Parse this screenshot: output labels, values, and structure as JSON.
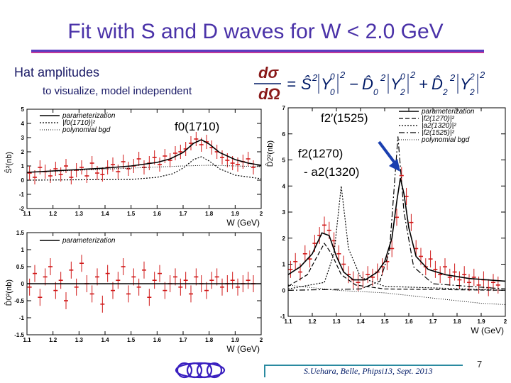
{
  "slide": {
    "title": "Fit  with S and D waves for W < 2.0 GeV",
    "hat_heading": "Hat amplitudes",
    "hat_sub": "to visualize,  model independent",
    "formula": {
      "dsigma": "dσ",
      "domega": "dΩ",
      "eq": "=",
      "S": "Ŝ",
      "Y": "Y",
      "D0": "D̂",
      "D2": "D̂",
      "minus": "−",
      "plus": "+",
      "sup2": "2",
      "sup0": "0",
      "sub0": "0",
      "sub2": "2"
    },
    "annotations": {
      "f0": "f0(1710)",
      "f2p": "f2′(1525)",
      "f2": "f2(1270)",
      "a2": "- a2(1320)"
    },
    "footer": "S.Uehara, Belle, Phipsi13, Sept. 2013",
    "page_number": "7"
  },
  "chart_data": [
    {
      "type": "scatter",
      "name": "S-hat squared",
      "ylabel": "Ŝ²(nb)",
      "xlabel": "W (GeV)",
      "xlim": [
        1.1,
        2.0
      ],
      "ylim": [
        -2,
        5
      ],
      "xticks": [
        "1.1",
        "1.2",
        "1.3",
        "1.4",
        "1.5",
        "1.6",
        "1.7",
        "1.8",
        "1.9",
        "2"
      ],
      "yticks": [
        "-2",
        "-1",
        "0",
        "1",
        "2",
        "3",
        "4",
        "5"
      ],
      "legend": [
        "parameterization",
        "|f0(1710)|²",
        "polynomial bgd"
      ],
      "legend_position": "top-left",
      "points": [
        [
          1.11,
          0.5
        ],
        [
          1.13,
          0.2
        ],
        [
          1.15,
          0.9
        ],
        [
          1.17,
          0.6
        ],
        [
          1.19,
          0.3
        ],
        [
          1.21,
          0.8
        ],
        [
          1.23,
          0.4
        ],
        [
          1.25,
          1.0
        ],
        [
          1.27,
          0.2
        ],
        [
          1.29,
          0.7
        ],
        [
          1.31,
          0.9
        ],
        [
          1.33,
          0.3
        ],
        [
          1.35,
          1.2
        ],
        [
          1.37,
          0.5
        ],
        [
          1.39,
          0.4
        ],
        [
          1.41,
          0.9
        ],
        [
          1.43,
          1.1
        ],
        [
          1.45,
          0.6
        ],
        [
          1.47,
          1.3
        ],
        [
          1.49,
          0.8
        ],
        [
          1.51,
          1.0
        ],
        [
          1.53,
          1.5
        ],
        [
          1.55,
          0.9
        ],
        [
          1.57,
          1.2
        ],
        [
          1.59,
          1.6
        ],
        [
          1.61,
          1.1
        ],
        [
          1.63,
          1.7
        ],
        [
          1.65,
          1.4
        ],
        [
          1.67,
          1.9
        ],
        [
          1.69,
          2.0
        ],
        [
          1.71,
          2.2
        ],
        [
          1.73,
          2.6
        ],
        [
          1.75,
          2.9
        ],
        [
          1.77,
          2.5
        ],
        [
          1.79,
          2.7
        ],
        [
          1.81,
          2.3
        ],
        [
          1.83,
          2.0
        ],
        [
          1.85,
          1.6
        ],
        [
          1.87,
          1.4
        ],
        [
          1.89,
          1.2
        ],
        [
          1.91,
          1.1
        ],
        [
          1.93,
          1.3
        ],
        [
          1.95,
          1.5
        ],
        [
          1.97,
          0.9
        ]
      ],
      "parameterization": [
        [
          1.1,
          0.55
        ],
        [
          1.2,
          0.65
        ],
        [
          1.3,
          0.75
        ],
        [
          1.4,
          0.85
        ],
        [
          1.5,
          1.0
        ],
        [
          1.6,
          1.25
        ],
        [
          1.65,
          1.5
        ],
        [
          1.7,
          1.95
        ],
        [
          1.74,
          2.6
        ],
        [
          1.77,
          2.85
        ],
        [
          1.8,
          2.55
        ],
        [
          1.84,
          1.95
        ],
        [
          1.9,
          1.45
        ],
        [
          1.95,
          1.2
        ],
        [
          2.0,
          1.05
        ]
      ],
      "f0_1710": [
        [
          1.1,
          0.0
        ],
        [
          1.5,
          0.05
        ],
        [
          1.6,
          0.2
        ],
        [
          1.66,
          0.45
        ],
        [
          1.7,
          0.85
        ],
        [
          1.74,
          1.45
        ],
        [
          1.77,
          1.65
        ],
        [
          1.8,
          1.35
        ],
        [
          1.84,
          0.8
        ],
        [
          1.9,
          0.35
        ],
        [
          2.0,
          0.1
        ]
      ],
      "bgd": [
        [
          1.1,
          0.55
        ],
        [
          1.3,
          0.7
        ],
        [
          1.5,
          0.85
        ],
        [
          1.7,
          1.0
        ],
        [
          1.8,
          1.05
        ],
        [
          1.9,
          1.0
        ],
        [
          2.0,
          0.95
        ]
      ]
    },
    {
      "type": "scatter",
      "name": "D0-hat squared",
      "ylabel": "D̂0²(nb)",
      "xlabel": "W (GeV)",
      "xlim": [
        1.1,
        2.0
      ],
      "ylim": [
        -1.5,
        1.5
      ],
      "xticks": [
        "1.1",
        "1.2",
        "1.3",
        "1.4",
        "1.5",
        "1.6",
        "1.7",
        "1.8",
        "1.9",
        "2"
      ],
      "yticks": [
        "-1.5",
        "-1",
        "-0.5",
        "0",
        "0.5",
        "1",
        "1.5"
      ],
      "legend": [
        "parameterization"
      ],
      "legend_position": "top-left",
      "points": [
        [
          1.11,
          -0.1
        ],
        [
          1.13,
          0.3
        ],
        [
          1.15,
          -0.4
        ],
        [
          1.17,
          0.2
        ],
        [
          1.19,
          0.5
        ],
        [
          1.21,
          -0.2
        ],
        [
          1.23,
          0.1
        ],
        [
          1.25,
          -0.5
        ],
        [
          1.27,
          0.4
        ],
        [
          1.29,
          -0.1
        ],
        [
          1.31,
          0.6
        ],
        [
          1.33,
          0.0
        ],
        [
          1.35,
          -0.3
        ],
        [
          1.37,
          0.2
        ],
        [
          1.39,
          -0.6
        ],
        [
          1.41,
          0.3
        ],
        [
          1.43,
          -0.2
        ],
        [
          1.45,
          0.1
        ],
        [
          1.47,
          0.5
        ],
        [
          1.49,
          -0.3
        ],
        [
          1.51,
          0.2
        ],
        [
          1.53,
          -0.1
        ],
        [
          1.55,
          0.4
        ],
        [
          1.57,
          -0.4
        ],
        [
          1.59,
          0.1
        ],
        [
          1.61,
          0.3
        ],
        [
          1.63,
          -0.2
        ],
        [
          1.65,
          0.0
        ],
        [
          1.67,
          0.2
        ],
        [
          1.69,
          -0.1
        ],
        [
          1.71,
          0.1
        ],
        [
          1.73,
          -0.3
        ],
        [
          1.75,
          0.2
        ],
        [
          1.77,
          0.0
        ],
        [
          1.79,
          -0.2
        ],
        [
          1.81,
          0.1
        ],
        [
          1.83,
          0.2
        ],
        [
          1.85,
          -0.1
        ],
        [
          1.87,
          0.0
        ],
        [
          1.89,
          0.1
        ],
        [
          1.91,
          -0.1
        ],
        [
          1.93,
          0.0
        ],
        [
          1.95,
          0.1
        ],
        [
          1.97,
          0.0
        ]
      ],
      "parameterization": [
        [
          1.1,
          0.0
        ],
        [
          2.0,
          0.0
        ]
      ]
    },
    {
      "type": "scatter",
      "name": "D2-hat squared",
      "ylabel": "D̂2²(nb)",
      "xlabel": "W (GeV)",
      "xlim": [
        1.1,
        2.0
      ],
      "ylim": [
        -1,
        7
      ],
      "xticks": [
        "1.1",
        "1.2",
        "1.3",
        "1.4",
        "1.5",
        "1.6",
        "1.7",
        "1.8",
        "1.9",
        "2"
      ],
      "yticks": [
        "-1",
        "0",
        "1",
        "2",
        "3",
        "4",
        "5",
        "6",
        "7"
      ],
      "legend": [
        "parameterization",
        "|f2(1270)|²",
        "|a2(1320)|²",
        "|f2(1525)|²",
        "polynomial bgd"
      ],
      "legend_position": "top-right",
      "points": [
        [
          1.11,
          0.8
        ],
        [
          1.13,
          1.1
        ],
        [
          1.15,
          0.7
        ],
        [
          1.17,
          1.4
        ],
        [
          1.19,
          1.2
        ],
        [
          1.21,
          1.8
        ],
        [
          1.23,
          2.1
        ],
        [
          1.25,
          2.5
        ],
        [
          1.27,
          2.3
        ],
        [
          1.29,
          1.9
        ],
        [
          1.31,
          1.4
        ],
        [
          1.33,
          1.0
        ],
        [
          1.35,
          0.6
        ],
        [
          1.37,
          0.4
        ],
        [
          1.39,
          0.3
        ],
        [
          1.41,
          0.4
        ],
        [
          1.43,
          0.6
        ],
        [
          1.45,
          0.5
        ],
        [
          1.47,
          0.7
        ],
        [
          1.49,
          0.9
        ],
        [
          1.51,
          1.1
        ],
        [
          1.53,
          1.6
        ],
        [
          1.55,
          2.8
        ],
        [
          1.57,
          4.4
        ],
        [
          1.59,
          3.6
        ],
        [
          1.61,
          2.6
        ],
        [
          1.63,
          1.6
        ],
        [
          1.65,
          1.3
        ],
        [
          1.67,
          0.9
        ],
        [
          1.69,
          1.2
        ],
        [
          1.71,
          0.8
        ],
        [
          1.73,
          0.6
        ],
        [
          1.75,
          0.9
        ],
        [
          1.77,
          0.5
        ],
        [
          1.79,
          0.7
        ],
        [
          1.81,
          0.4
        ],
        [
          1.83,
          0.6
        ],
        [
          1.85,
          0.3
        ],
        [
          1.87,
          0.5
        ],
        [
          1.89,
          0.2
        ],
        [
          1.91,
          0.4
        ],
        [
          1.93,
          0.1
        ],
        [
          1.95,
          0.3
        ],
        [
          1.97,
          0.2
        ]
      ],
      "parameterization": [
        [
          1.1,
          0.6
        ],
        [
          1.15,
          0.9
        ],
        [
          1.2,
          1.4
        ],
        [
          1.24,
          2.2
        ],
        [
          1.27,
          2.1
        ],
        [
          1.3,
          1.3
        ],
        [
          1.33,
          0.7
        ],
        [
          1.37,
          0.4
        ],
        [
          1.42,
          0.4
        ],
        [
          1.47,
          0.7
        ],
        [
          1.5,
          1.1
        ],
        [
          1.53,
          2.0
        ],
        [
          1.55,
          3.4
        ],
        [
          1.565,
          4.3
        ],
        [
          1.58,
          3.7
        ],
        [
          1.6,
          2.4
        ],
        [
          1.63,
          1.3
        ],
        [
          1.68,
          0.8
        ],
        [
          1.75,
          0.6
        ],
        [
          1.85,
          0.45
        ],
        [
          2.0,
          0.35
        ]
      ],
      "f2_1270": [
        [
          1.1,
          0.15
        ],
        [
          1.18,
          0.6
        ],
        [
          1.22,
          1.3
        ],
        [
          1.25,
          1.8
        ],
        [
          1.28,
          1.4
        ],
        [
          1.32,
          0.6
        ],
        [
          1.38,
          0.2
        ],
        [
          1.5,
          0.05
        ],
        [
          2.0,
          0.0
        ]
      ],
      "a2_1320": [
        [
          1.1,
          0.05
        ],
        [
          1.25,
          0.3
        ],
        [
          1.29,
          1.4
        ],
        [
          1.32,
          4.0
        ],
        [
          1.35,
          1.6
        ],
        [
          1.4,
          0.5
        ],
        [
          1.5,
          0.15
        ],
        [
          2.0,
          0.0
        ]
      ],
      "f2_1525": [
        [
          1.1,
          0.0
        ],
        [
          1.4,
          0.05
        ],
        [
          1.48,
          0.35
        ],
        [
          1.52,
          1.5
        ],
        [
          1.555,
          5.9
        ],
        [
          1.58,
          3.0
        ],
        [
          1.62,
          0.9
        ],
        [
          1.7,
          0.25
        ],
        [
          2.0,
          0.05
        ]
      ],
      "bgd": [
        [
          1.1,
          0.2
        ],
        [
          1.3,
          0.0
        ],
        [
          1.5,
          -0.1
        ],
        [
          1.7,
          -0.3
        ],
        [
          1.9,
          -0.5
        ],
        [
          2.0,
          -0.55
        ]
      ]
    }
  ]
}
